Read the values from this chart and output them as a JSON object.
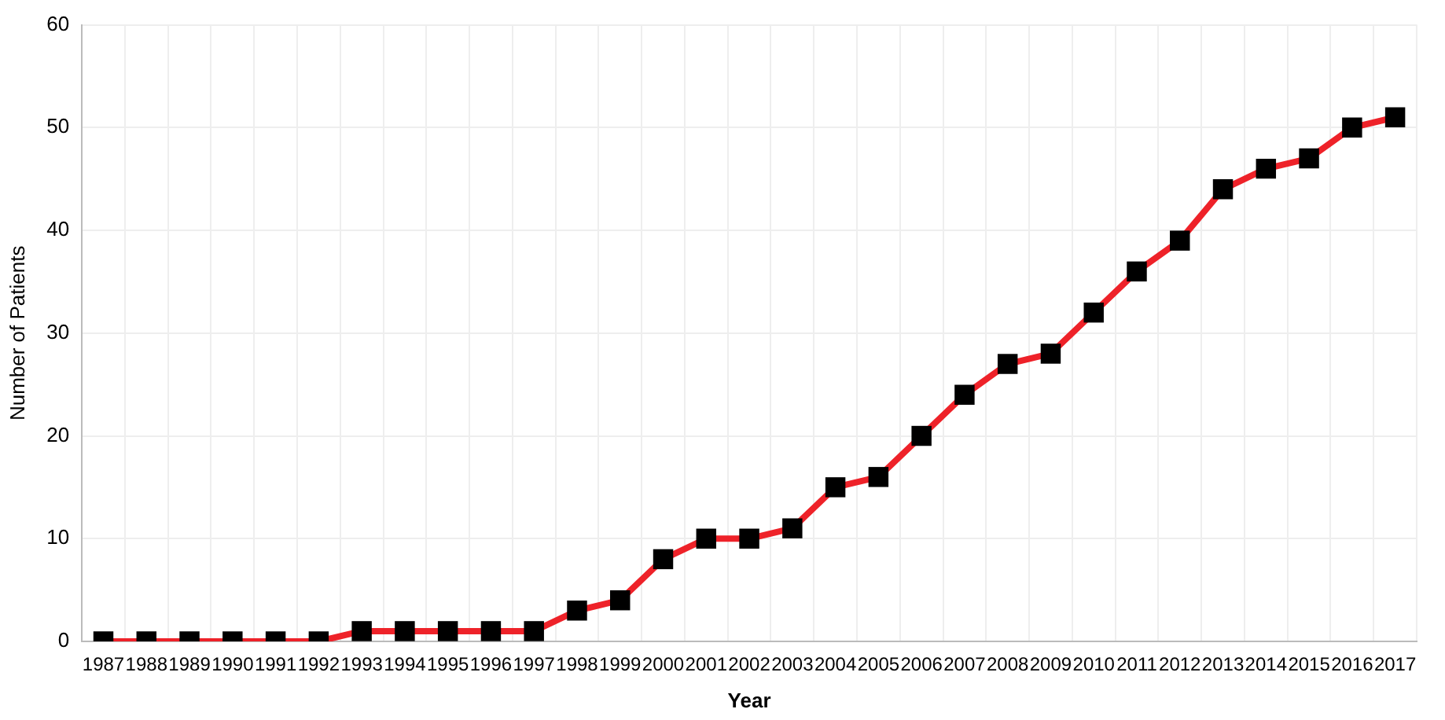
{
  "chart_data": {
    "type": "line",
    "xlabel": "Year",
    "ylabel": "Number of Patients",
    "categories": [
      "1987",
      "1988",
      "1989",
      "1990",
      "1991",
      "1992",
      "1993",
      "1994",
      "1995",
      "1996",
      "1997",
      "1998",
      "1999",
      "2000",
      "2001",
      "2002",
      "2003",
      "2004",
      "2005",
      "2006",
      "2007",
      "2008",
      "2009",
      "2010",
      "2011",
      "2012",
      "2013",
      "2014",
      "2015",
      "2016",
      "2017"
    ],
    "series": [
      {
        "color": "#ee2229",
        "values": [
          0,
          0,
          0,
          0,
          0,
          0,
          1,
          1,
          1,
          1,
          1,
          3,
          4,
          8,
          10,
          10,
          11,
          15,
          16,
          20,
          24,
          27,
          28,
          32,
          36,
          39,
          44,
          46,
          47,
          50,
          51
        ]
      }
    ],
    "ylim": [
      0,
      60
    ],
    "yticks": [
      0,
      10,
      20,
      30,
      40,
      50,
      60
    ],
    "grid": true,
    "legend": false,
    "marker": "square",
    "line_style": "solid"
  }
}
